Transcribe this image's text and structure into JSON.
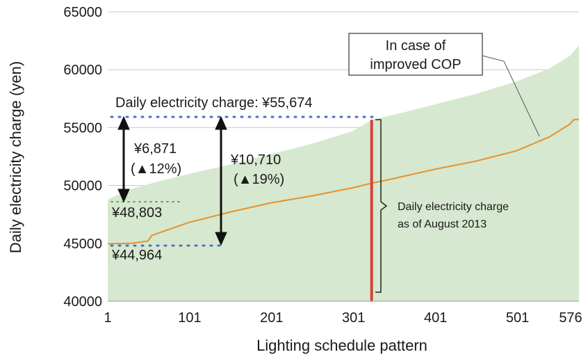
{
  "chart_data": {
    "type": "area",
    "xlabel": "Lighting  schedule pattern",
    "ylabel": "Daily electricity charge (yen)",
    "xlim": [
      1,
      576
    ],
    "ylim": [
      40000,
      65000
    ],
    "x_ticks": [
      1,
      101,
      201,
      301,
      401,
      501,
      576
    ],
    "y_ticks": [
      40000,
      45000,
      50000,
      55000,
      60000,
      65000
    ],
    "grid": "horizontal",
    "series": [
      {
        "fill_color": "#d6e8cf",
        "points": [
          [
            1,
            48803
          ],
          [
            30,
            49700
          ],
          [
            60,
            50300
          ],
          [
            100,
            51000
          ],
          [
            150,
            51800
          ],
          [
            200,
            52700
          ],
          [
            250,
            53600
          ],
          [
            300,
            54700
          ],
          [
            323,
            55674
          ],
          [
            350,
            56100
          ],
          [
            400,
            57000
          ],
          [
            450,
            57900
          ],
          [
            500,
            59000
          ],
          [
            540,
            60100
          ],
          [
            565,
            61200
          ],
          [
            576,
            62100
          ]
        ]
      },
      {
        "name": "In case of improved COP",
        "color": "#e8902a",
        "points": [
          [
            1,
            44964
          ],
          [
            30,
            45000
          ],
          [
            50,
            45200
          ],
          [
            55,
            45700
          ],
          [
            100,
            46800
          ],
          [
            150,
            47700
          ],
          [
            200,
            48500
          ],
          [
            250,
            49100
          ],
          [
            300,
            49800
          ],
          [
            323,
            50200
          ],
          [
            350,
            50600
          ],
          [
            400,
            51400
          ],
          [
            450,
            52100
          ],
          [
            500,
            53000
          ],
          [
            540,
            54200
          ],
          [
            565,
            55300
          ],
          [
            570,
            55700
          ],
          [
            576,
            55700
          ]
        ]
      }
    ],
    "reference_line": {
      "x": 323,
      "color": "#d9413a"
    },
    "annotations": {
      "daily_charge": "Daily electricity charge: ¥55,674",
      "daily_charge_value": 55674,
      "value_48803": "¥48,803",
      "value_44964": "¥44,964",
      "diff1_amount": "¥6,871",
      "diff1_pct": "(▲12%)",
      "diff2_amount": "¥10,710",
      "diff2_pct": "(▲19%)",
      "callout_line1": "In case of",
      "callout_line2": "improved COP",
      "aug_line1": "Daily electricity charge",
      "aug_line2": "as of August  2013"
    }
  }
}
